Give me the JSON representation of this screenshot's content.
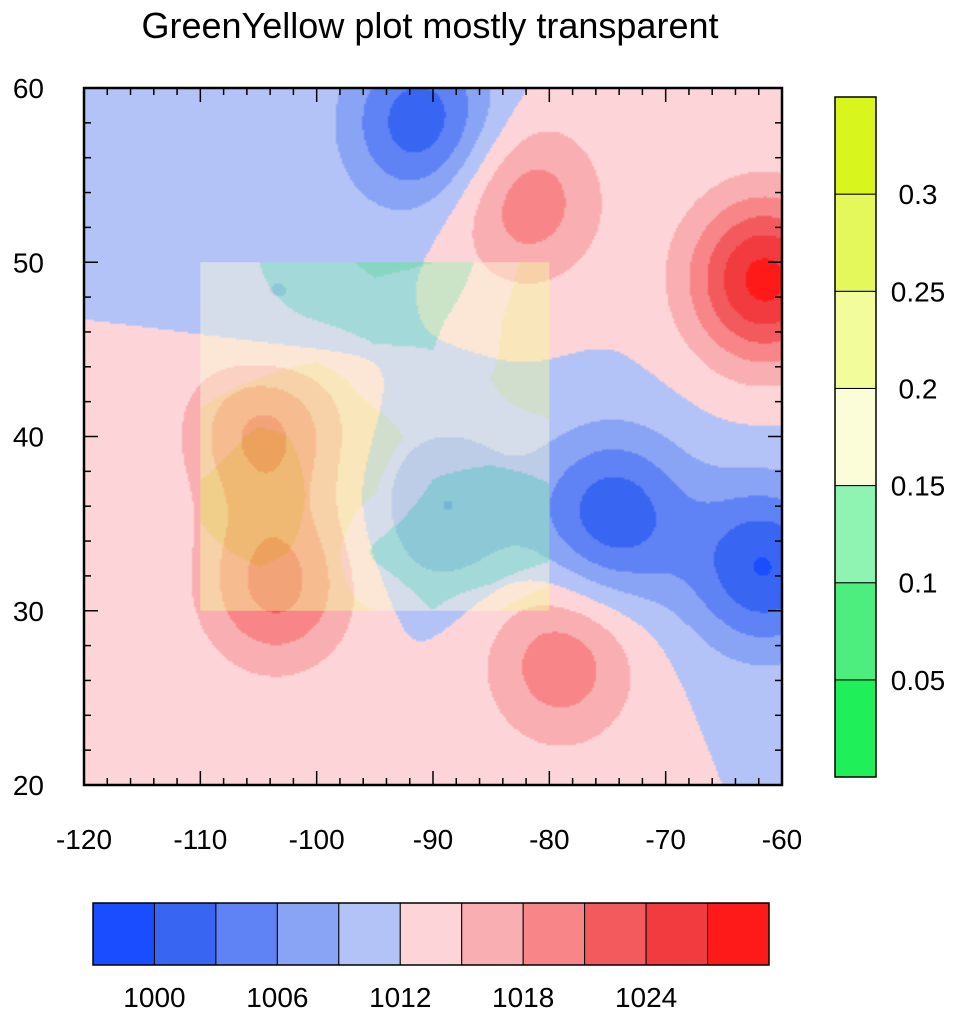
{
  "chart_data": {
    "type": "heatmap",
    "title": "GreenYellow plot mostly transparent",
    "xlabel": "",
    "ylabel": "",
    "xlim": [
      -120,
      -60
    ],
    "ylim": [
      20,
      60
    ],
    "x_ticks": [
      "-120",
      "-110",
      "-100",
      "-90",
      "-80",
      "-70",
      "-60"
    ],
    "y_ticks": [
      "20",
      "30",
      "40",
      "50",
      "60"
    ],
    "background_value": 1012,
    "pressure_field": {
      "name": "",
      "centers": [
        {
          "lon": -91,
          "lat": 58,
          "value": 1001,
          "kind": "low"
        },
        {
          "lon": -103.5,
          "lat": 47,
          "value": 1008,
          "kind": "low"
        },
        {
          "lon": -89,
          "lat": 36,
          "value": 1006,
          "kind": "low"
        },
        {
          "lon": -74.5,
          "lat": 35.5,
          "value": 1001,
          "kind": "low"
        },
        {
          "lon": -61.5,
          "lat": 32.5,
          "value": 1000,
          "kind": "low"
        },
        {
          "lon": -82,
          "lat": 53.5,
          "value": 1020,
          "kind": "high"
        },
        {
          "lon": -61.5,
          "lat": 49,
          "value": 1028,
          "kind": "high"
        },
        {
          "lon": -104.5,
          "lat": 40.5,
          "value": 1022,
          "kind": "high"
        },
        {
          "lon": -103.5,
          "lat": 31.5,
          "value": 1022,
          "kind": "high"
        },
        {
          "lon": -79,
          "lat": 27,
          "value": 1020,
          "kind": "high"
        }
      ],
      "levels": [
        1000,
        1003,
        1006,
        1009,
        1012,
        1015,
        1018,
        1021,
        1024,
        1027
      ],
      "colors": [
        "#1a4dff",
        "#3866f2",
        "#5f82f5",
        "#8aa4f5",
        "#b4c3f7",
        "#fdd5d8",
        "#f9aeb2",
        "#f88688",
        "#f35a5e",
        "#f23b3f",
        "#ff1a1a"
      ]
    },
    "overlay_field": {
      "name": "",
      "region": {
        "lon": [
          -110,
          -80
        ],
        "lat": [
          30,
          50
        ]
      },
      "opacity": 0.45,
      "values": [
        [
          0.17,
          0.15,
          0.12,
          0.09,
          0.1,
          0.17,
          0.23
        ],
        [
          0.17,
          0.16,
          0.15,
          0.13,
          0.14,
          0.19,
          0.24
        ],
        [
          0.18,
          0.2,
          0.22,
          0.18,
          0.16,
          0.2,
          0.22
        ],
        [
          0.22,
          0.26,
          0.24,
          0.22,
          0.18,
          0.19,
          0.19
        ],
        [
          0.26,
          0.29,
          0.24,
          0.2,
          0.14,
          0.11,
          0.14
        ],
        [
          0.24,
          0.26,
          0.24,
          0.14,
          0.1,
          0.1,
          0.13
        ],
        [
          0.2,
          0.22,
          0.22,
          0.2,
          0.15,
          0.19,
          0.25
        ]
      ],
      "levels": [
        0.05,
        0.1,
        0.15,
        0.2,
        0.25,
        0.3
      ],
      "colors": [
        "#1ff05a",
        "#4dee7e",
        "#8ff3b2",
        "#fafdd8",
        "#f3fc9a",
        "#e4f85c",
        "#d8f51e"
      ]
    },
    "legend_vertical": {
      "placement": "right",
      "labels": [
        "0.05",
        "0.1",
        "0.15",
        "0.2",
        "0.25",
        "0.3"
      ]
    },
    "legend_horizontal": {
      "placement": "bottom",
      "labels": [
        "1000",
        "1006",
        "1012",
        "1018",
        "1024"
      ]
    },
    "grid": false
  }
}
